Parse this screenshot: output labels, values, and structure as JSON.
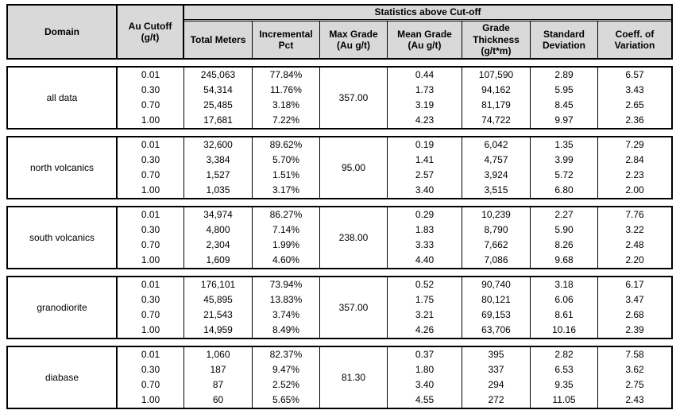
{
  "table": {
    "banner": "Statistics above Cut-off",
    "columns": {
      "domain": "Domain",
      "au_cutoff": "Au Cutoff\n(g/t)",
      "total_meters": "Total Meters",
      "incremental_pct": "Incremental\nPct",
      "max_grade": "Max Grade\n(Au g/t)",
      "mean_grade": "Mean Grade\n(Au g/t)",
      "grade_thickness": "Grade\nThickness\n(g/t*m)",
      "std_dev": "Standard\nDeviation",
      "cov": "Coeff. of\nVariation"
    },
    "blocks": [
      {
        "domain": "all data",
        "max_grade": "357.00",
        "rows": [
          {
            "cutoff": "0.01",
            "total_meters": "245,063",
            "incremental_pct": "77.84%",
            "mean_grade": "0.44",
            "grade_thickness": "107,590",
            "std_dev": "2.89",
            "cov": "6.57"
          },
          {
            "cutoff": "0.30",
            "total_meters": "54,314",
            "incremental_pct": "11.76%",
            "mean_grade": "1.73",
            "grade_thickness": "94,162",
            "std_dev": "5.95",
            "cov": "3.43"
          },
          {
            "cutoff": "0.70",
            "total_meters": "25,485",
            "incremental_pct": "3.18%",
            "mean_grade": "3.19",
            "grade_thickness": "81,179",
            "std_dev": "8.45",
            "cov": "2.65"
          },
          {
            "cutoff": "1.00",
            "total_meters": "17,681",
            "incremental_pct": "7.22%",
            "mean_grade": "4.23",
            "grade_thickness": "74,722",
            "std_dev": "9.97",
            "cov": "2.36"
          }
        ]
      },
      {
        "domain": "north volcanics",
        "max_grade": "95.00",
        "rows": [
          {
            "cutoff": "0.01",
            "total_meters": "32,600",
            "incremental_pct": "89.62%",
            "mean_grade": "0.19",
            "grade_thickness": "6,042",
            "std_dev": "1.35",
            "cov": "7.29"
          },
          {
            "cutoff": "0.30",
            "total_meters": "3,384",
            "incremental_pct": "5.70%",
            "mean_grade": "1.41",
            "grade_thickness": "4,757",
            "std_dev": "3.99",
            "cov": "2.84"
          },
          {
            "cutoff": "0.70",
            "total_meters": "1,527",
            "incremental_pct": "1.51%",
            "mean_grade": "2.57",
            "grade_thickness": "3,924",
            "std_dev": "5.72",
            "cov": "2.23"
          },
          {
            "cutoff": "1.00",
            "total_meters": "1,035",
            "incremental_pct": "3.17%",
            "mean_grade": "3.40",
            "grade_thickness": "3,515",
            "std_dev": "6.80",
            "cov": "2.00"
          }
        ]
      },
      {
        "domain": "south volcanics",
        "max_grade": "238.00",
        "rows": [
          {
            "cutoff": "0.01",
            "total_meters": "34,974",
            "incremental_pct": "86.27%",
            "mean_grade": "0.29",
            "grade_thickness": "10,239",
            "std_dev": "2.27",
            "cov": "7.76"
          },
          {
            "cutoff": "0.30",
            "total_meters": "4,800",
            "incremental_pct": "7.14%",
            "mean_grade": "1.83",
            "grade_thickness": "8,790",
            "std_dev": "5.90",
            "cov": "3.22"
          },
          {
            "cutoff": "0.70",
            "total_meters": "2,304",
            "incremental_pct": "1.99%",
            "mean_grade": "3.33",
            "grade_thickness": "7,662",
            "std_dev": "8.26",
            "cov": "2.48"
          },
          {
            "cutoff": "1.00",
            "total_meters": "1,609",
            "incremental_pct": "4.60%",
            "mean_grade": "4.40",
            "grade_thickness": "7,086",
            "std_dev": "9.68",
            "cov": "2.20"
          }
        ]
      },
      {
        "domain": "granodiorite",
        "max_grade": "357.00",
        "rows": [
          {
            "cutoff": "0.01",
            "total_meters": "176,101",
            "incremental_pct": "73.94%",
            "mean_grade": "0.52",
            "grade_thickness": "90,740",
            "std_dev": "3.18",
            "cov": "6.17"
          },
          {
            "cutoff": "0.30",
            "total_meters": "45,895",
            "incremental_pct": "13.83%",
            "mean_grade": "1.75",
            "grade_thickness": "80,121",
            "std_dev": "6.06",
            "cov": "3.47"
          },
          {
            "cutoff": "0.70",
            "total_meters": "21,543",
            "incremental_pct": "3.74%",
            "mean_grade": "3.21",
            "grade_thickness": "69,153",
            "std_dev": "8.61",
            "cov": "2.68"
          },
          {
            "cutoff": "1.00",
            "total_meters": "14,959",
            "incremental_pct": "8.49%",
            "mean_grade": "4.26",
            "grade_thickness": "63,706",
            "std_dev": "10.16",
            "cov": "2.39"
          }
        ]
      },
      {
        "domain": "diabase",
        "max_grade": "81.30",
        "rows": [
          {
            "cutoff": "0.01",
            "total_meters": "1,060",
            "incremental_pct": "82.37%",
            "mean_grade": "0.37",
            "grade_thickness": "395",
            "std_dev": "2.82",
            "cov": "7.58"
          },
          {
            "cutoff": "0.30",
            "total_meters": "187",
            "incremental_pct": "9.47%",
            "mean_grade": "1.80",
            "grade_thickness": "337",
            "std_dev": "6.53",
            "cov": "3.62"
          },
          {
            "cutoff": "0.70",
            "total_meters": "87",
            "incremental_pct": "2.52%",
            "mean_grade": "3.40",
            "grade_thickness": "294",
            "std_dev": "9.35",
            "cov": "2.75"
          },
          {
            "cutoff": "1.00",
            "total_meters": "60",
            "incremental_pct": "5.65%",
            "mean_grade": "4.55",
            "grade_thickness": "272",
            "std_dev": "11.05",
            "cov": "2.43"
          }
        ]
      }
    ]
  },
  "colors": {
    "header_bg": "#d9d9d9",
    "border": "#000000",
    "text": "#000000",
    "data_bg": "#ffffff"
  },
  "chart_data": {
    "type": "table",
    "title": "Statistics above Cut-off",
    "columns": [
      "Domain",
      "Au Cutoff (g/t)",
      "Total Meters",
      "Incremental Pct",
      "Max Grade (Au g/t)",
      "Mean Grade (Au g/t)",
      "Grade Thickness (g/t*m)",
      "Standard Deviation",
      "Coeff. of Variation"
    ],
    "rows": [
      [
        "all data",
        "0.01",
        "245,063",
        "77.84%",
        "357.00",
        "0.44",
        "107,590",
        "2.89",
        "6.57"
      ],
      [
        "all data",
        "0.30",
        "54,314",
        "11.76%",
        "357.00",
        "1.73",
        "94,162",
        "5.95",
        "3.43"
      ],
      [
        "all data",
        "0.70",
        "25,485",
        "3.18%",
        "357.00",
        "3.19",
        "81,179",
        "8.45",
        "2.65"
      ],
      [
        "all data",
        "1.00",
        "17,681",
        "7.22%",
        "357.00",
        "4.23",
        "74,722",
        "9.97",
        "2.36"
      ],
      [
        "north volcanics",
        "0.01",
        "32,600",
        "89.62%",
        "95.00",
        "0.19",
        "6,042",
        "1.35",
        "7.29"
      ],
      [
        "north volcanics",
        "0.30",
        "3,384",
        "5.70%",
        "95.00",
        "1.41",
        "4,757",
        "3.99",
        "2.84"
      ],
      [
        "north volcanics",
        "0.70",
        "1,527",
        "1.51%",
        "95.00",
        "2.57",
        "3,924",
        "5.72",
        "2.23"
      ],
      [
        "north volcanics",
        "1.00",
        "1,035",
        "3.17%",
        "95.00",
        "3.40",
        "3,515",
        "6.80",
        "2.00"
      ],
      [
        "south volcanics",
        "0.01",
        "34,974",
        "86.27%",
        "238.00",
        "0.29",
        "10,239",
        "2.27",
        "7.76"
      ],
      [
        "south volcanics",
        "0.30",
        "4,800",
        "7.14%",
        "238.00",
        "1.83",
        "8,790",
        "5.90",
        "3.22"
      ],
      [
        "south volcanics",
        "0.70",
        "2,304",
        "1.99%",
        "238.00",
        "3.33",
        "7,662",
        "8.26",
        "2.48"
      ],
      [
        "south volcanics",
        "1.00",
        "1,609",
        "4.60%",
        "238.00",
        "4.40",
        "7,086",
        "9.68",
        "2.20"
      ],
      [
        "granodiorite",
        "0.01",
        "176,101",
        "73.94%",
        "357.00",
        "0.52",
        "90,740",
        "3.18",
        "6.17"
      ],
      [
        "granodiorite",
        "0.30",
        "45,895",
        "13.83%",
        "357.00",
        "1.75",
        "80,121",
        "6.06",
        "3.47"
      ],
      [
        "granodiorite",
        "0.70",
        "21,543",
        "3.74%",
        "357.00",
        "3.21",
        "69,153",
        "8.61",
        "2.68"
      ],
      [
        "granodiorite",
        "1.00",
        "14,959",
        "8.49%",
        "357.00",
        "4.26",
        "63,706",
        "10.16",
        "2.39"
      ],
      [
        "diabase",
        "0.01",
        "1,060",
        "82.37%",
        "81.30",
        "0.37",
        "395",
        "2.82",
        "7.58"
      ],
      [
        "diabase",
        "0.30",
        "187",
        "9.47%",
        "81.30",
        "1.80",
        "337",
        "6.53",
        "3.62"
      ],
      [
        "diabase",
        "0.70",
        "87",
        "2.52%",
        "81.30",
        "3.40",
        "294",
        "9.35",
        "2.75"
      ],
      [
        "diabase",
        "1.00",
        "60",
        "5.65%",
        "81.30",
        "4.55",
        "272",
        "11.05",
        "2.43"
      ]
    ]
  }
}
